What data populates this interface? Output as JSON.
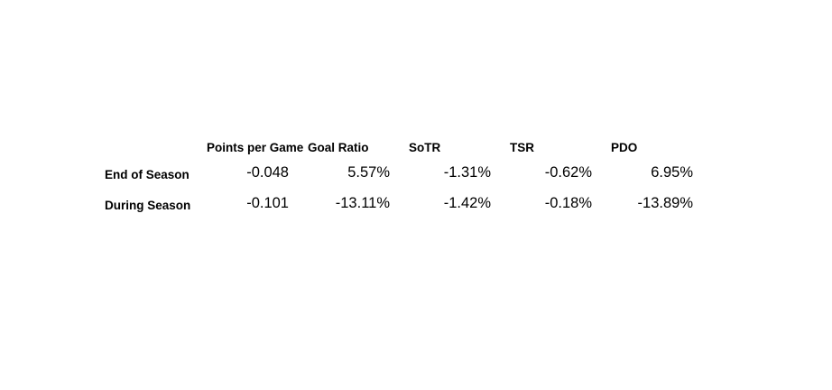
{
  "chart_data": {
    "type": "table",
    "columns": [
      "Points per Game",
      "Goal Ratio",
      "SoTR",
      "TSR",
      "PDO"
    ],
    "rows": [
      {
        "label": "End of Season",
        "cells": [
          "-0.048",
          "5.57%",
          "-1.31%",
          "-0.62%",
          "6.95%"
        ],
        "values": [
          -0.048,
          5.57,
          -1.31,
          -0.62,
          6.95
        ]
      },
      {
        "label": "During Season",
        "cells": [
          "-0.101",
          "-13.11%",
          "-1.42%",
          "-0.18%",
          "-13.89%"
        ],
        "values": [
          -0.101,
          -13.11,
          -1.42,
          -0.18,
          -13.89
        ]
      }
    ]
  }
}
